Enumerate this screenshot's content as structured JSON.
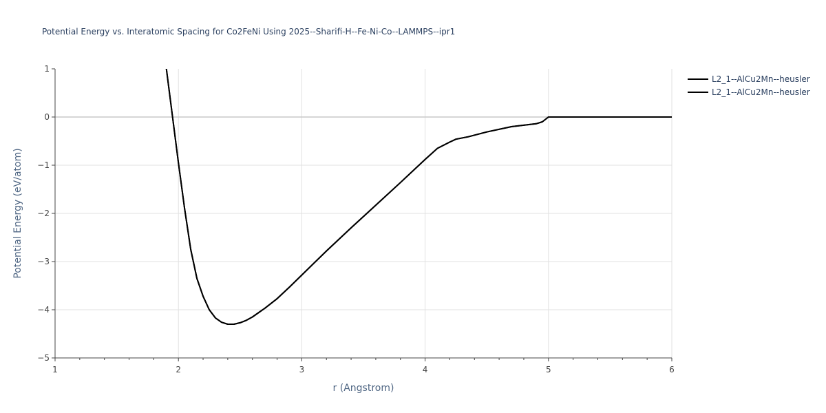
{
  "chart_data": {
    "type": "line",
    "title": "Potential Energy vs. Interatomic Spacing for Co2FeNi Using 2025--Sharifi-H--Fe-Ni-Co--LAMMPS--ipr1",
    "xlabel": "r (Angstrom)",
    "ylabel": "Potential Energy (eV/atom)",
    "xlim": [
      1,
      6
    ],
    "ylim": [
      -5,
      1
    ],
    "x_ticks": [
      1,
      2,
      3,
      4,
      5,
      6
    ],
    "y_ticks": [
      1,
      0,
      -1,
      -2,
      -3,
      -4,
      -5
    ],
    "x_tick_labels": [
      "1",
      "2",
      "3",
      "4",
      "5",
      "6"
    ],
    "y_tick_labels": [
      "1",
      "0",
      "−1",
      "−2",
      "−3",
      "−4",
      "−5"
    ],
    "grid": true,
    "legend_position": "top-right",
    "series": [
      {
        "name": "L2_1--AlCu2Mn--heusler",
        "color": "#000000",
        "x": [
          1.9,
          1.95,
          2.0,
          2.05,
          2.1,
          2.15,
          2.2,
          2.25,
          2.3,
          2.35,
          2.4,
          2.45,
          2.5,
          2.55,
          2.6,
          2.7,
          2.8,
          2.9,
          3.0,
          3.2,
          3.4,
          3.6,
          3.8,
          4.0,
          4.1,
          4.2,
          4.25,
          4.35,
          4.5,
          4.7,
          4.9,
          4.95,
          5.0,
          5.5,
          6.0
        ],
        "y": [
          1.05,
          0.05,
          -0.95,
          -1.9,
          -2.75,
          -3.35,
          -3.72,
          -4.0,
          -4.17,
          -4.26,
          -4.3,
          -4.3,
          -4.27,
          -4.22,
          -4.15,
          -3.97,
          -3.77,
          -3.53,
          -3.28,
          -2.78,
          -2.3,
          -1.83,
          -1.36,
          -0.88,
          -0.65,
          -0.52,
          -0.46,
          -0.41,
          -0.31,
          -0.2,
          -0.14,
          -0.1,
          0.0,
          0.0,
          0.0
        ]
      },
      {
        "name": "L2_1--AlCu2Mn--heusler",
        "color": "#000000",
        "x": [
          1.9,
          1.95,
          2.0,
          2.05,
          2.1,
          2.15,
          2.2,
          2.25,
          2.3,
          2.35,
          2.4,
          2.45,
          2.5,
          2.55,
          2.6,
          2.7,
          2.8,
          2.9,
          3.0,
          3.2,
          3.4,
          3.6,
          3.8,
          4.0,
          4.1,
          4.2,
          4.25,
          4.35,
          4.5,
          4.7,
          4.9,
          4.95,
          5.0,
          5.5,
          6.0
        ],
        "y": [
          1.05,
          0.05,
          -0.95,
          -1.9,
          -2.75,
          -3.35,
          -3.72,
          -4.0,
          -4.17,
          -4.26,
          -4.3,
          -4.3,
          -4.27,
          -4.22,
          -4.15,
          -3.97,
          -3.77,
          -3.53,
          -3.28,
          -2.78,
          -2.3,
          -1.83,
          -1.36,
          -0.88,
          -0.65,
          -0.52,
          -0.46,
          -0.41,
          -0.31,
          -0.2,
          -0.14,
          -0.1,
          0.0,
          0.0,
          0.0
        ]
      }
    ]
  }
}
